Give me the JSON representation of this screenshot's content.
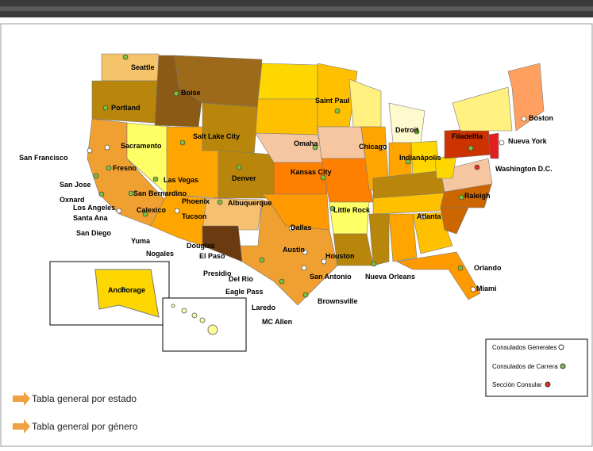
{
  "map": {
    "cities": [
      "Seattle",
      "Portland",
      "Boise",
      "San Francisco",
      "Sacramento",
      "Salt Lake City",
      "Fresno",
      "San Jose",
      "Las Vegas",
      "Denver",
      "Omaha",
      "Chicago",
      "Detroit",
      "Saint Paul",
      "Kansas City",
      "Indianápolis",
      "Filadelfia",
      "Boston",
      "Nueva York",
      "Washington D.C.",
      "Raleigh",
      "Oxnard",
      "Los Angeles",
      "San Bernardino",
      "Albuquerque",
      "Phoenix",
      "Santa Ana",
      "Calexico",
      "Tucson",
      "Little Rock",
      "Atlanta",
      "San Diego",
      "Yuma",
      "Dallas",
      "Douglas",
      "Nogales",
      "El Paso",
      "Austin",
      "Houston",
      "Orlando",
      "Presidio",
      "Del Rio",
      "San Antonio",
      "Nueva Orleans",
      "Miami",
      "Anchorage",
      "Eagle Pass",
      "Laredo",
      "Brownsville",
      "MC  Allen"
    ]
  },
  "legend": {
    "items": [
      "Consulados Generales",
      "Consulados de Carrera",
      "Sección Consular"
    ]
  },
  "links": [
    "Tabla general por estado",
    "Tabla general por género"
  ]
}
